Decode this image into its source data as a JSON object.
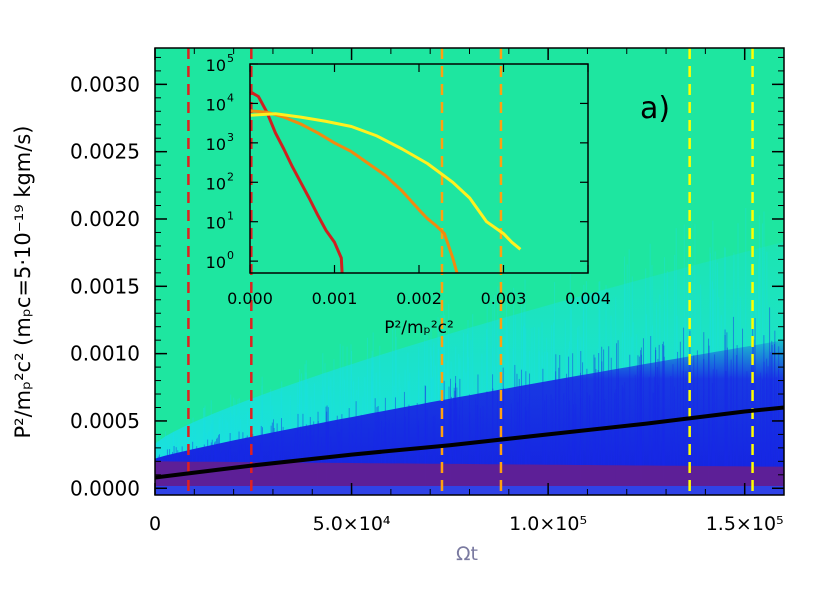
{
  "chart_data": [
    {
      "type": "heatmap",
      "panel_label": "a)",
      "xlabel": "Ωt",
      "ylabel": "P²/mₚ²c²   (mₚc=5·10⁻¹⁹ kgm/s)",
      "xlim": [
        0,
        160000
      ],
      "ylim": [
        -5e-05,
        0.00327
      ],
      "x_ticks": [
        {
          "value": 0,
          "label": "0"
        },
        {
          "value": 50000,
          "label": "5.0×10⁴"
        },
        {
          "value": 100000,
          "label": "1.0×10⁵"
        },
        {
          "value": 150000,
          "label": "1.5×10⁵"
        }
      ],
      "y_ticks": [
        {
          "value": 0.0,
          "label": "0.0000"
        },
        {
          "value": 0.0005,
          "label": "0.0005"
        },
        {
          "value": 0.001,
          "label": "0.0010"
        },
        {
          "value": 0.0015,
          "label": "0.0015"
        },
        {
          "value": 0.002,
          "label": "0.0020"
        },
        {
          "value": 0.0025,
          "label": "0.0025"
        },
        {
          "value": 0.003,
          "label": "0.0030"
        }
      ],
      "colors": {
        "background": "#1EE6A0",
        "cyan": "#19E0E6",
        "blue": "#1420E0",
        "purple": "#6A1E8A",
        "mean_line": "#000000"
      },
      "mean_line": {
        "x": [
          0,
          25000,
          50000,
          75000,
          100000,
          125000,
          150000,
          160000
        ],
        "y": [
          8e-05,
          0.00017,
          0.00025,
          0.00032,
          0.0004,
          0.00048,
          0.00057,
          0.0006
        ]
      },
      "vertical_markers": [
        {
          "x": 8500,
          "color": "#E02020"
        },
        {
          "x": 24500,
          "color": "#E02020"
        },
        {
          "x": 73000,
          "color": "#FFA010"
        },
        {
          "x": 88000,
          "color": "#FFA010"
        },
        {
          "x": 136000,
          "color": "#FFFF00"
        },
        {
          "x": 152000,
          "color": "#FFFF00"
        }
      ]
    },
    {
      "type": "line",
      "xlabel": "P²/mₚ²c²",
      "xlim": [
        0,
        0.004
      ],
      "y_scale": "log",
      "ylim": [
        0.5,
        100000
      ],
      "x_ticks": [
        {
          "value": 0,
          "label": "0.000"
        },
        {
          "value": 0.001,
          "label": "0.001"
        },
        {
          "value": 0.002,
          "label": "0.002"
        },
        {
          "value": 0.003,
          "label": "0.003"
        },
        {
          "value": 0.004,
          "label": "0.004"
        }
      ],
      "y_ticks": [
        {
          "value": 1,
          "exp": "0"
        },
        {
          "value": 10,
          "exp": "1"
        },
        {
          "value": 100,
          "exp": "2"
        },
        {
          "value": 1000,
          "exp": "3"
        },
        {
          "value": 10000,
          "exp": "4"
        },
        {
          "value": 100000,
          "exp": "5"
        }
      ],
      "series": [
        {
          "color": "#D02020",
          "x": [
            0,
            0.0001,
            0.0002,
            0.0003,
            0.0004,
            0.0005,
            0.0006,
            0.0007,
            0.0008,
            0.0009,
            0.001,
            0.00108,
            0.00109
          ],
          "y": [
            20000,
            15000,
            6000,
            1800,
            700,
            250,
            100,
            40,
            15,
            6,
            3,
            1.2,
            0.5
          ]
        },
        {
          "color": "#F08A10",
          "x": [
            0,
            0.0002,
            0.0004,
            0.0006,
            0.0008,
            0.001,
            0.0012,
            0.0014,
            0.0016,
            0.0018,
            0.002,
            0.0021,
            0.0022,
            0.0023,
            0.0024,
            0.00245
          ],
          "y": [
            6500,
            6000,
            4500,
            3000,
            1800,
            1000,
            600,
            300,
            150,
            60,
            20,
            12,
            8,
            5,
            1.2,
            0.5
          ]
        },
        {
          "color": "#FFF020",
          "x": [
            0,
            0.0003,
            0.0006,
            0.0009,
            0.0012,
            0.0015,
            0.0018,
            0.0021,
            0.0024,
            0.0026,
            0.0028,
            0.003,
            0.0031,
            0.0032
          ],
          "y": [
            5000,
            5500,
            4500,
            3500,
            2600,
            1500,
            700,
            300,
            100,
            40,
            10,
            5,
            3,
            2
          ]
        }
      ]
    }
  ]
}
